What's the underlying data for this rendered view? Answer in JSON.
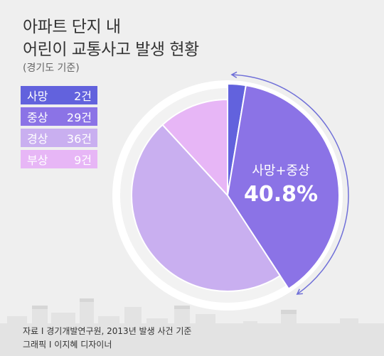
{
  "title_line1": "아파트 단지 내",
  "title_line2": "어린이 교통사고 발생 현황",
  "subtitle": "(경기도 기준)",
  "source_line1": "자료 I 경기개발연구원, 2013년 발생 사건 기준",
  "source_line2": "그래픽 I 이지혜 디자이너",
  "callout": {
    "label": "사망+중상",
    "value": "40.8%"
  },
  "chart_data": {
    "type": "pie",
    "categories": [
      "사망",
      "중상",
      "경상",
      "부상"
    ],
    "values": [
      2,
      29,
      36,
      9
    ],
    "value_labels": [
      "2건",
      "29건",
      "36건",
      "9건"
    ],
    "colors": [
      "#6262dd",
      "#8b73e6",
      "#c9aff0",
      "#e7b6f6"
    ],
    "legend_position": "top-left",
    "highlight": {
      "categories": [
        "사망",
        "중상"
      ],
      "percent": 40.8
    }
  }
}
